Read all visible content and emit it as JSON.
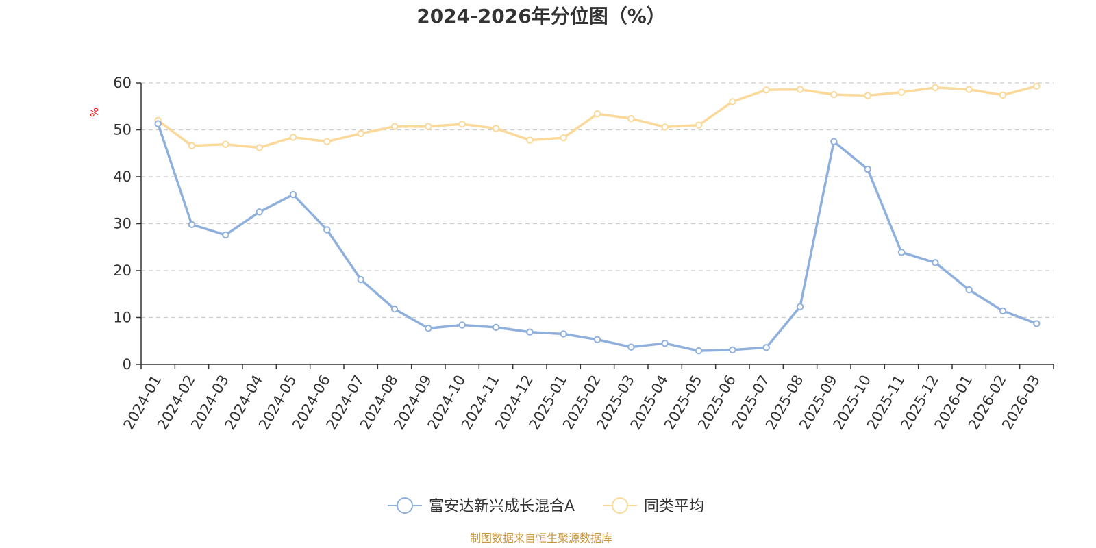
{
  "chart_data": {
    "type": "line",
    "title": "2024-2026年分位图（%）",
    "ylabel": "%",
    "ylim": [
      0,
      60
    ],
    "yticks": [
      0,
      10,
      20,
      30,
      40,
      50,
      60
    ],
    "grid": true,
    "legend_position": "bottom-center",
    "categories": [
      "2024-01",
      "2024-02",
      "2024-03",
      "2024-04",
      "2024-05",
      "2024-06",
      "2024-07",
      "2024-08",
      "2024-09",
      "2024-10",
      "2024-11",
      "2024-12",
      "2025-01",
      "2025-02",
      "2025-03",
      "2025-04",
      "2025-05",
      "2025-06",
      "2025-07",
      "2025-08",
      "2025-09",
      "2025-10",
      "2025-11",
      "2025-12",
      "2026-01",
      "2026-02",
      "2026-03"
    ],
    "series": [
      {
        "name": "富安达新兴成长混合A",
        "color": "#8fb0dc",
        "values": [
          51.3,
          29.8,
          27.6,
          32.5,
          36.2,
          28.7,
          18.1,
          11.8,
          7.7,
          8.4,
          7.9,
          6.9,
          6.5,
          5.3,
          3.7,
          4.5,
          2.9,
          3.1,
          3.6,
          12.3,
          47.5,
          41.6,
          23.9,
          21.7,
          15.9,
          11.4,
          8.7
        ]
      },
      {
        "name": "同类平均",
        "color": "#fad99a",
        "values": [
          52.0,
          46.6,
          46.9,
          46.2,
          48.4,
          47.5,
          49.2,
          50.7,
          50.7,
          51.2,
          50.3,
          47.8,
          48.3,
          53.4,
          52.4,
          50.6,
          51.0,
          56.0,
          58.5,
          58.6,
          57.5,
          57.3,
          58.0,
          59.0,
          58.6,
          57.4,
          59.3
        ]
      }
    ],
    "axis_color": "#333333",
    "unit_color": "#ff0000"
  },
  "source_text": "制图数据来自恒生聚源数据库",
  "source_color": "#c8963c"
}
